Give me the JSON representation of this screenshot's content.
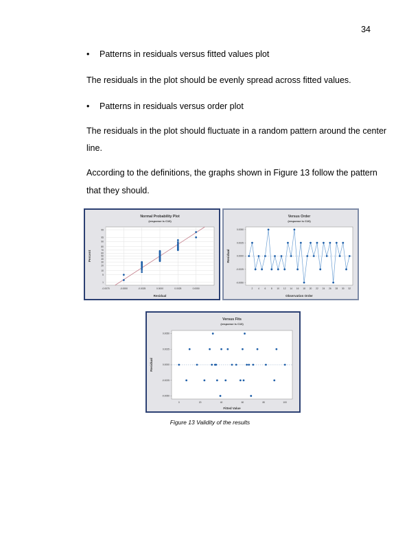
{
  "page_number": "34",
  "bullets": [
    "Patterns in residuals versus fitted values plot",
    "Patterns in residuals versus order plot"
  ],
  "bullet_symbol": "•",
  "paragraphs": {
    "p1": "The residuals in the plot should be evenly spread across fitted values.",
    "p2_line1": "The residuals in the plot should fluctuate in a random pattern around the center",
    "p2_line2": "line.",
    "p3_line1": "According to the definitions, the graphs shown in Figure 13 follow the pattern",
    "p3_line2": "that they should."
  },
  "caption": "Figure 13 Validity of the results",
  "colors": {
    "frame_blue": "#2b3f72",
    "point_blue": "#1f5fa8",
    "fit_line": "#c47e8a",
    "panel_bg": "#e4e4e8"
  },
  "chart_data": [
    {
      "type": "scatter",
      "title": "Normal Probability Plot",
      "subtitle": "(response is C10)",
      "xlabel": "Residual",
      "ylabel": "Percent",
      "x_ticks": [
        "-0.0075",
        "-0.0050",
        "-0.0025",
        "0.0000",
        "0.0025",
        "0.0050"
      ],
      "y_ticks": [
        "1",
        "5",
        "10",
        "20",
        "30",
        "40",
        "50",
        "60",
        "70",
        "80",
        "90",
        "95",
        "99"
      ],
      "xlim": [
        -0.0075,
        0.0075
      ],
      "ylim": [
        0.5,
        99.5
      ],
      "grid": true,
      "x": [
        -0.005,
        -0.005,
        -0.0025,
        -0.0025,
        -0.0025,
        -0.0025,
        -0.0025,
        -0.0025,
        -0.0025,
        -0.0025,
        0,
        0,
        0,
        0,
        0,
        0,
        0,
        0,
        0,
        0,
        0,
        0,
        0.0025,
        0.0025,
        0.0025,
        0.0025,
        0.0025,
        0.0025,
        0.0025,
        0.0025,
        0.005,
        0.005
      ],
      "y": [
        1.7,
        4.9,
        8.0,
        11.1,
        14.2,
        17.3,
        20.4,
        23.6,
        26.7,
        29.8,
        32.9,
        36.0,
        39.1,
        42.2,
        45.3,
        48.4,
        51.6,
        54.7,
        57.8,
        60.9,
        64.0,
        67.1,
        70.2,
        73.3,
        76.4,
        79.6,
        82.7,
        85.8,
        88.9,
        92.0,
        95.1,
        98.3
      ],
      "fit_line": {
        "x": [
          -0.0062,
          0.0062
        ],
        "y": [
          0.5,
          99.5
        ]
      }
    },
    {
      "type": "line",
      "title": "Versus Order",
      "subtitle": "(response is C10)",
      "xlabel": "Observation Order",
      "ylabel": "Residual",
      "x_ticks": [
        "2",
        "4",
        "6",
        "8",
        "10",
        "12",
        "14",
        "16",
        "18",
        "20",
        "22",
        "24",
        "26",
        "28",
        "30",
        "32"
      ],
      "y_ticks": [
        "0.0050",
        "0.0025",
        "0.0000",
        "-0.0025",
        "-0.0050"
      ],
      "xlim": [
        0,
        33
      ],
      "ylim": [
        -0.0055,
        0.0055
      ],
      "grid": false,
      "reference_line": 0,
      "x": [
        1,
        2,
        3,
        4,
        5,
        6,
        7,
        8,
        9,
        10,
        11,
        12,
        13,
        14,
        15,
        16,
        17,
        18,
        19,
        20,
        21,
        22,
        23,
        24,
        25,
        26,
        27,
        28,
        29,
        30,
        31,
        32
      ],
      "y": [
        0,
        0.0025,
        -0.0025,
        0,
        -0.0025,
        0,
        0.005,
        -0.0025,
        0,
        -0.0025,
        0,
        -0.0025,
        0.0025,
        0,
        0.005,
        -0.0025,
        0.0025,
        -0.005,
        0,
        0.0025,
        0,
        0.0025,
        -0.0025,
        0.0025,
        0,
        0.0025,
        -0.005,
        0.0025,
        0,
        0.0025,
        -0.0025,
        0
      ]
    },
    {
      "type": "scatter",
      "title": "Versus Fits",
      "subtitle": "(response is C10)",
      "xlabel": "Fitted Value",
      "ylabel": "Residual",
      "x_ticks": [
        "0",
        "20",
        "40",
        "60",
        "80",
        "100"
      ],
      "y_ticks": [
        "0.0050",
        "0.0025",
        "0.0000",
        "-0.0025",
        "-0.0050"
      ],
      "xlim": [
        -7,
        107
      ],
      "ylim": [
        -0.0055,
        0.0055
      ],
      "grid": false,
      "reference_line": 0,
      "x": [
        0,
        7,
        10,
        17,
        24,
        29,
        31,
        32,
        34,
        35,
        36,
        39,
        40,
        44,
        46,
        50,
        54,
        58,
        60,
        61,
        62,
        64,
        66,
        68,
        70,
        74,
        82,
        90,
        92,
        100
      ],
      "y": [
        0,
        -0.0025,
        0.0025,
        0,
        -0.0025,
        0.0025,
        0,
        0.005,
        0,
        0,
        -0.0025,
        -0.005,
        0.0025,
        -0.0025,
        0.0025,
        0,
        0,
        -0.0025,
        0.0025,
        -0.0025,
        0.005,
        0,
        0,
        -0.005,
        0,
        0.0025,
        0,
        -0.0025,
        0.0025,
        0
      ]
    }
  ]
}
